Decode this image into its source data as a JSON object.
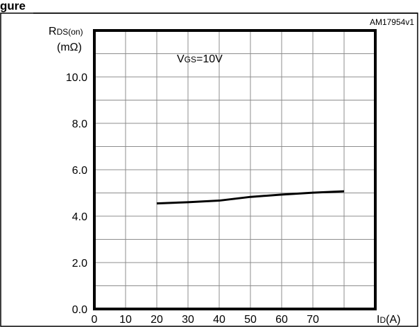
{
  "figure": {
    "heading_fragment": "gure",
    "figure_code": "AM17954v1"
  },
  "chart_data": {
    "type": "line",
    "annotation": {
      "main": "V",
      "sub": "GS",
      "rest": "=10V"
    },
    "ylabel": {
      "main": "R",
      "sub": "DS(on)",
      "unit": "(mΩ)"
    },
    "xlabel": {
      "main": "I",
      "sub": "D",
      "rest": "(A)"
    },
    "xlim": [
      0,
      90
    ],
    "ylim": [
      0,
      12
    ],
    "x_ticks": [
      0,
      10,
      20,
      30,
      40,
      50,
      60,
      70
    ],
    "x_tick_labels": [
      "0",
      "10",
      "20",
      "30",
      "40",
      "50",
      "60",
      "70"
    ],
    "y_ticks": [
      0,
      2,
      4,
      6,
      8,
      10
    ],
    "y_tick_labels": [
      "0.0",
      "2.0",
      "4.0",
      "6.0",
      "8.0",
      "10.0"
    ],
    "grid": true,
    "series": [
      {
        "x": [
          20,
          30,
          40,
          50,
          60,
          70,
          80
        ],
        "y": [
          4.55,
          4.6,
          4.67,
          4.83,
          4.93,
          5.01,
          5.07
        ]
      }
    ]
  }
}
